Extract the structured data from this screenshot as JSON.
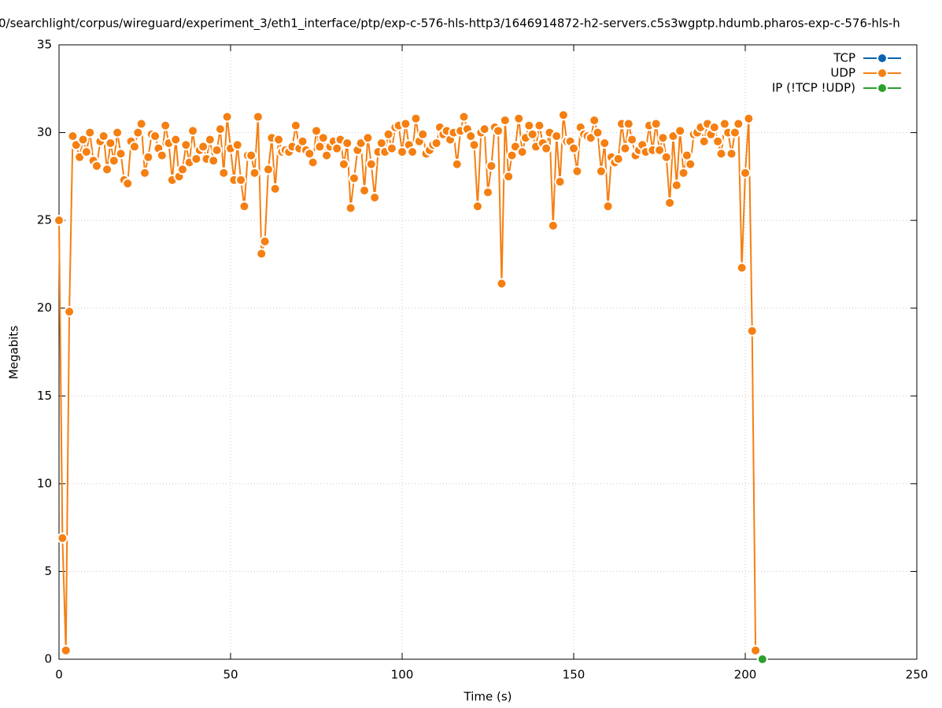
{
  "chart_data": {
    "type": "line",
    "title": "0/searchlight/corpus/wireguard/experiment_3/eth1_interface/ptp/exp-c-576-hls-http3/1646914872-h2-servers.c5s3wgptp.hdumb.pharos-exp-c-576-hls-h",
    "x_label": "Time (s)",
    "y_label": "Megabits",
    "xlim": [
      0,
      250
    ],
    "xticks": [
      0,
      50,
      100,
      150,
      200,
      250
    ],
    "ylim": [
      0,
      35
    ],
    "yticks": [
      0,
      5,
      10,
      15,
      20,
      25,
      30,
      35
    ],
    "grid": true,
    "legend": "top-right",
    "series": [
      {
        "name": "TCP",
        "color": "#0a63b0",
        "x": [],
        "values": []
      },
      {
        "name": "UDP",
        "color": "#f57f11",
        "x": [
          0,
          1,
          2,
          3,
          4,
          5,
          6,
          7,
          8,
          9,
          10,
          11,
          12,
          13,
          14,
          15,
          16,
          17,
          18,
          19,
          20,
          21,
          22,
          23,
          24,
          25,
          26,
          27,
          28,
          29,
          30,
          31,
          32,
          33,
          34,
          35,
          36,
          37,
          38,
          39,
          40,
          41,
          42,
          43,
          44,
          45,
          46,
          47,
          48,
          49,
          50,
          51,
          52,
          53,
          54,
          55,
          56,
          57,
          58,
          59,
          60,
          61,
          62,
          63,
          64,
          65,
          66,
          67,
          68,
          69,
          70,
          71,
          72,
          73,
          74,
          75,
          76,
          77,
          78,
          79,
          80,
          81,
          82,
          83,
          84,
          85,
          86,
          87,
          88,
          89,
          90,
          91,
          92,
          93,
          94,
          95,
          96,
          97,
          98,
          99,
          100,
          101,
          102,
          103,
          104,
          105,
          106,
          107,
          108,
          109,
          110,
          111,
          112,
          113,
          114,
          115,
          116,
          117,
          118,
          119,
          120,
          121,
          122,
          123,
          124,
          125,
          126,
          127,
          128,
          129,
          130,
          131,
          132,
          133,
          134,
          135,
          136,
          137,
          138,
          139,
          140,
          141,
          142,
          143,
          144,
          145,
          146,
          147,
          148,
          149,
          150,
          151,
          152,
          153,
          154,
          155,
          156,
          157,
          158,
          159,
          160,
          161,
          162,
          163,
          164,
          165,
          166,
          167,
          168,
          169,
          170,
          171,
          172,
          173,
          174,
          175,
          176,
          177,
          178,
          179,
          180,
          181,
          182,
          183,
          184,
          185,
          186,
          187,
          188,
          189,
          190,
          191,
          192,
          193,
          194,
          195,
          196,
          197,
          198,
          199,
          200,
          201,
          202,
          203
        ],
        "values": [
          25,
          6.9,
          0.5,
          19.8,
          29.8,
          29.3,
          28.6,
          29.6,
          28.9,
          30.0,
          28.4,
          28.1,
          29.5,
          29.8,
          27.9,
          29.4,
          28.4,
          30.0,
          28.8,
          27.3,
          27.1,
          29.5,
          29.2,
          30.0,
          30.5,
          27.7,
          28.6,
          29.9,
          29.8,
          29.1,
          28.7,
          30.4,
          29.4,
          27.3,
          29.6,
          27.5,
          27.9,
          29.3,
          28.3,
          30.1,
          28.5,
          29.0,
          29.2,
          28.5,
          29.6,
          28.4,
          29.0,
          30.2,
          27.7,
          30.9,
          29.1,
          27.3,
          29.3,
          27.3,
          25.8,
          28.7,
          28.7,
          27.7,
          30.9,
          23.1,
          23.8,
          27.9,
          29.7,
          26.8,
          29.6,
          28.9,
          29.0,
          28.9,
          29.2,
          30.4,
          29.1,
          29.5,
          29.0,
          28.8,
          28.3,
          30.1,
          29.2,
          29.7,
          28.7,
          29.2,
          29.5,
          29.1,
          29.6,
          28.2,
          29.4,
          25.7,
          27.4,
          29.0,
          29.4,
          26.7,
          29.7,
          28.2,
          26.3,
          28.9,
          29.4,
          28.9,
          29.9,
          29.1,
          30.3,
          30.4,
          28.9,
          30.5,
          29.3,
          28.9,
          30.8,
          29.5,
          29.9,
          28.8,
          29.0,
          29.3,
          29.4,
          30.3,
          29.9,
          30.1,
          29.6,
          30.0,
          28.2,
          30.1,
          30.9,
          30.2,
          29.8,
          29.3,
          25.8,
          30.0,
          30.2,
          26.6,
          28.1,
          30.3,
          30.1,
          21.4,
          30.7,
          27.5,
          28.7,
          29.2,
          30.8,
          28.9,
          29.7,
          30.4,
          29.9,
          29.2,
          30.4,
          29.4,
          29.1,
          30.0,
          24.7,
          29.8,
          27.2,
          31.0,
          29.5,
          29.5,
          29.1,
          27.8,
          30.3,
          29.9,
          29.8,
          29.7,
          30.7,
          30.0,
          27.8,
          29.4,
          25.8,
          28.6,
          28.3,
          28.5,
          30.5,
          29.1,
          30.5,
          29.6,
          28.7,
          29.0,
          29.3,
          28.9,
          30.4,
          29.0,
          30.5,
          29.0,
          29.7,
          28.6,
          26.0,
          29.8,
          27.0,
          30.1,
          27.7,
          28.7,
          28.2,
          29.9,
          30.0,
          30.3,
          29.5,
          30.5,
          29.9,
          30.3,
          29.5,
          28.8,
          30.5,
          30.0,
          28.8,
          30.0,
          30.5,
          22.3,
          27.7,
          30.8,
          18.7,
          0.5
        ]
      },
      {
        "name": "IP (!TCP  !UDP)",
        "color": "#2ca02c",
        "x": [
          205
        ],
        "values": [
          0
        ]
      }
    ]
  }
}
